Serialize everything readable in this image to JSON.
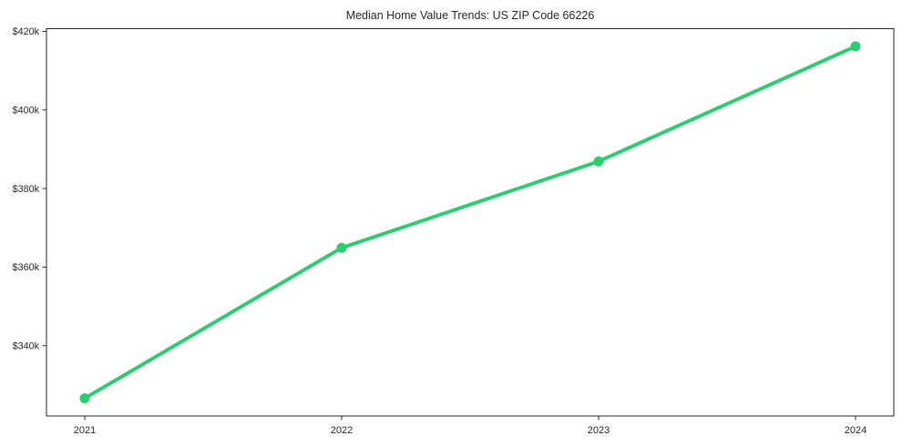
{
  "chart_data": {
    "type": "line",
    "title": "Median Home Value Trends: US ZIP Code 66226",
    "x": [
      2021,
      2022,
      2023,
      2024
    ],
    "x_tick_labels": [
      "2021",
      "2022",
      "2023",
      "2024"
    ],
    "series": [
      {
        "name": "Median Home Value",
        "values": [
          326600,
          364900,
          386900,
          416200
        ]
      }
    ],
    "y_ticks": [
      {
        "value": 340000,
        "label": "$340k"
      },
      {
        "value": 360000,
        "label": "$360k"
      },
      {
        "value": 380000,
        "label": "$380k"
      },
      {
        "value": 400000,
        "label": "$400k"
      },
      {
        "value": 420000,
        "label": "$420k"
      }
    ],
    "ylim": [
      322100,
      420700
    ],
    "xlabel": "",
    "ylabel": "",
    "grid": false,
    "legend_position": "none",
    "line_color": "#2ecc71",
    "marker": "circle",
    "background_color": "#ffffff",
    "text_color": "#262626",
    "spine_color": "#262626"
  }
}
